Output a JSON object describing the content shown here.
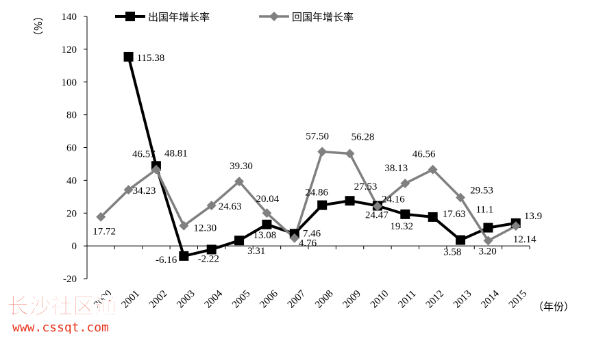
{
  "chart_data": {
    "type": "line",
    "ylabel": "（%）",
    "xlabel": "（年份）",
    "ylim": [
      -20,
      140
    ],
    "yticks": [
      -20,
      0,
      20,
      40,
      60,
      80,
      100,
      120,
      140
    ],
    "grid": false,
    "legend": "top",
    "categories": [
      "2000",
      "2001",
      "2002",
      "2003",
      "2004",
      "2005",
      "2006",
      "2007",
      "2008",
      "2009",
      "2010",
      "2011",
      "2012",
      "2013",
      "2014",
      "2015"
    ],
    "series": [
      {
        "name": "出国年增长率",
        "color": "#000000",
        "marker": "square",
        "values": [
          null,
          115.38,
          48.81,
          -6.16,
          -2.22,
          3.31,
          13.08,
          7.46,
          24.86,
          27.53,
          24.47,
          19.32,
          17.63,
          3.58,
          11.1,
          13.9
        ],
        "labels": [
          null,
          "115.38",
          "48.81",
          "-6.16",
          "-2.22",
          "3.31",
          "13.08",
          "7.46",
          "24.86",
          "27.53",
          "24.47",
          "19.32",
          "17.63",
          "3.58",
          "11.1",
          "13.9"
        ]
      },
      {
        "name": "回国年增长率",
        "color": "#808080",
        "marker": "diamond",
        "values": [
          17.72,
          34.23,
          46.57,
          12.3,
          24.63,
          39.3,
          20.04,
          4.76,
          57.5,
          56.28,
          24.16,
          38.13,
          46.56,
          29.53,
          3.2,
          12.14
        ],
        "labels": [
          "17.72",
          "34.23",
          "46.57",
          "12.30",
          "24.63",
          "39.30",
          "20.04",
          "4.76",
          "57.50",
          "56.28",
          "24.16",
          "38.13",
          "46.56",
          "29.53",
          "3.20",
          "12.14"
        ]
      }
    ]
  },
  "watermark": {
    "logo_text": "长沙社区通",
    "url_text": "www.cssqt.com",
    "color": "#e8341c"
  }
}
